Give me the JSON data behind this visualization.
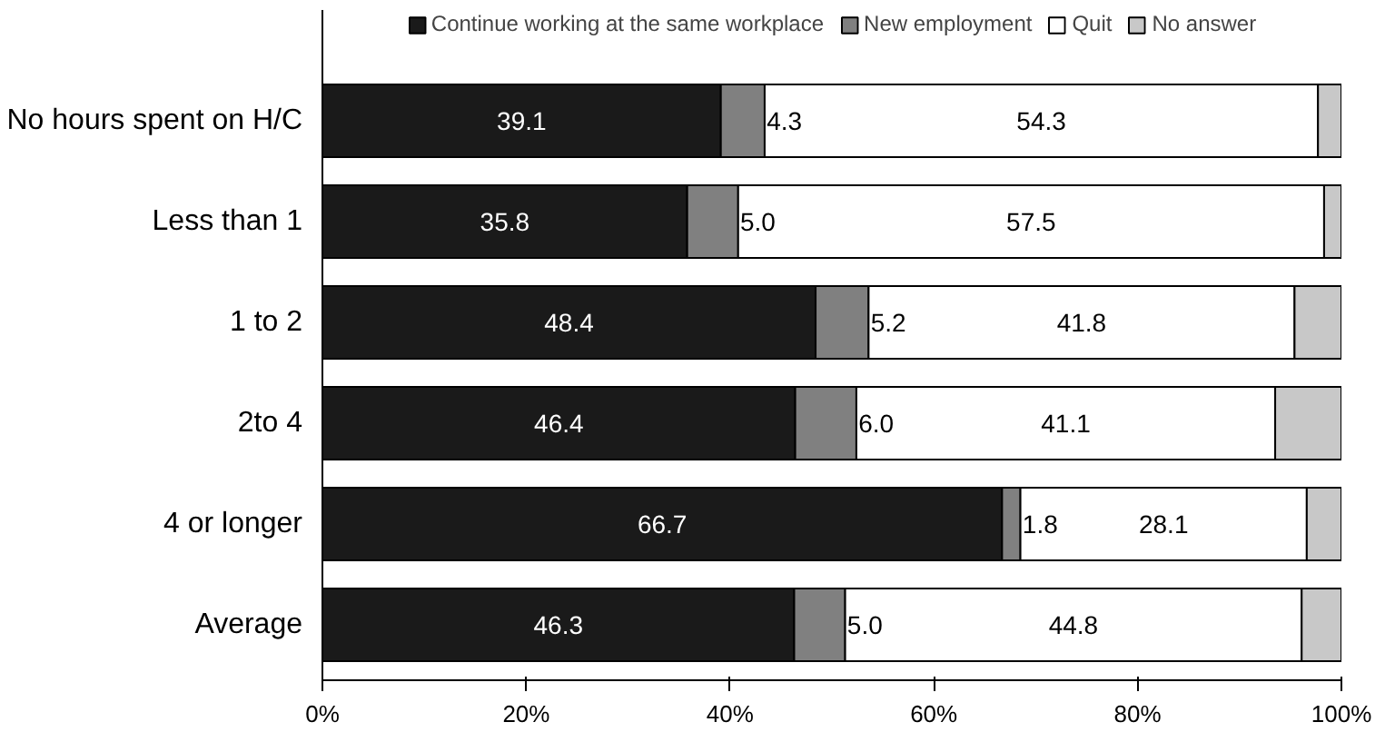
{
  "chart_data": {
    "type": "bar",
    "orientation": "horizontal",
    "stacked": true,
    "categories": [
      "No hours spent on H/C",
      "Less than 1",
      "1 to 2",
      "2to 4",
      "4 or longer",
      "Average"
    ],
    "series": [
      {
        "name": "Continue working at the same workplace",
        "color": "#1a1a1a",
        "values": [
          39.1,
          35.8,
          48.4,
          46.4,
          66.7,
          46.3
        ],
        "value_labels": [
          "39.1",
          "35.8",
          "48.4",
          "46.4",
          "66.7",
          "46.3"
        ]
      },
      {
        "name": "New employment",
        "color": "#808080",
        "values": [
          4.3,
          5.0,
          5.2,
          6.0,
          1.8,
          5.0
        ],
        "value_labels": [
          "4.3",
          "5.0",
          "5.2",
          "6.0",
          "1.8",
          "5.0"
        ]
      },
      {
        "name": "Quit",
        "color": "#ffffff",
        "values": [
          54.3,
          57.5,
          41.8,
          41.1,
          28.1,
          44.8
        ],
        "value_labels": [
          "54.3",
          "57.5",
          "41.8",
          "41.1",
          "28.1",
          "44.8"
        ]
      },
      {
        "name": "No answer",
        "color": "#c8c8c8",
        "values": [
          2.3,
          1.7,
          4.6,
          6.5,
          3.4,
          3.9
        ]
      }
    ],
    "xlim": [
      0,
      100
    ],
    "xticks": [
      {
        "value": 0,
        "label": "0%"
      },
      {
        "value": 20,
        "label": "20%"
      },
      {
        "value": 40,
        "label": "40%"
      },
      {
        "value": 60,
        "label": "60%"
      },
      {
        "value": 80,
        "label": "80%"
      },
      {
        "value": 100,
        "label": "100%"
      }
    ],
    "legend": "top",
    "grid": false
  }
}
